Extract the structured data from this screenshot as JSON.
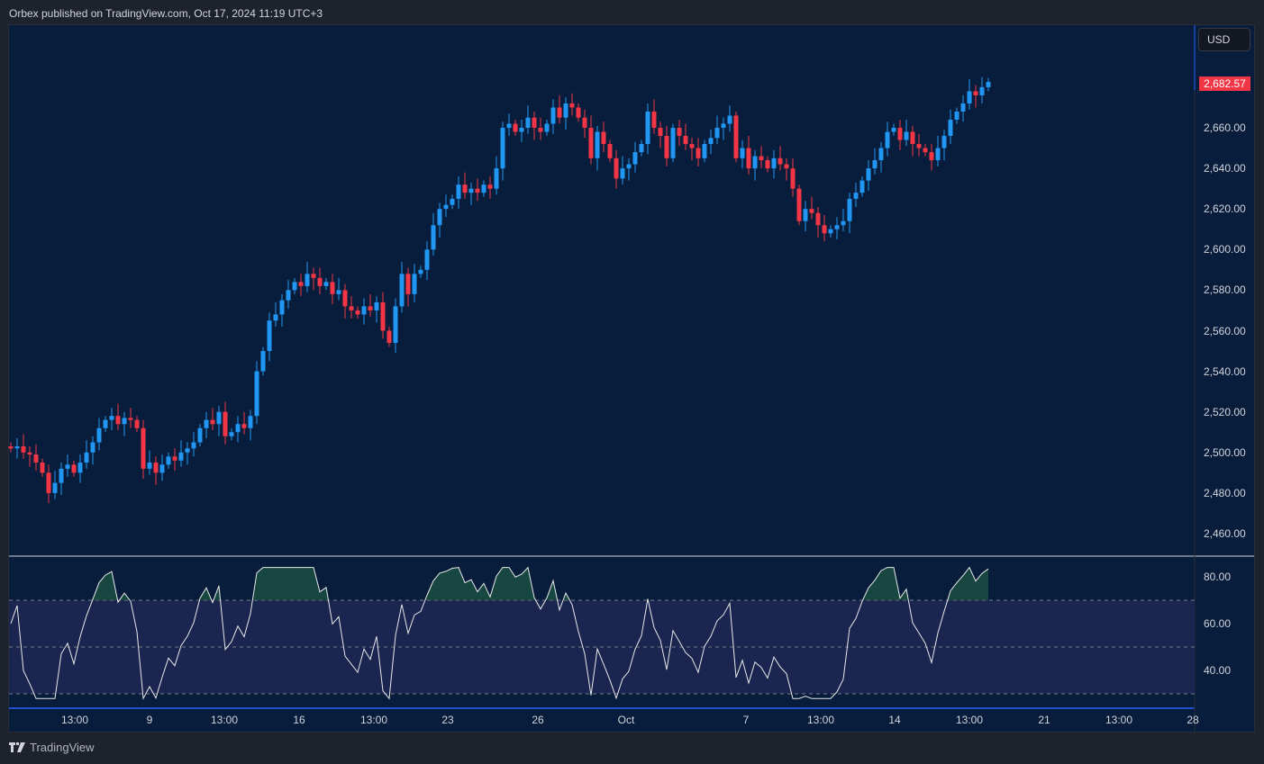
{
  "header": {
    "published": "Orbex published on TradingView.com, Oct 17, 2024 11:19 UTC+3"
  },
  "currency": "USD",
  "last_price": "2,682.57",
  "price_axis": [
    "2,660.00",
    "2,640.00",
    "2,620.00",
    "2,600.00",
    "2,580.00",
    "2,560.00",
    "2,540.00",
    "2,520.00",
    "2,500.00",
    "2,480.00",
    "2,460.00"
  ],
  "rsi_axis": [
    "80.00",
    "60.00",
    "40.00"
  ],
  "time_axis": [
    "13:00",
    "9",
    "13:00",
    "16",
    "13:00",
    "23",
    "26",
    "Oct",
    "7",
    "13:00",
    "14",
    "13:00",
    "21",
    "13:00",
    "28"
  ],
  "footer": {
    "brand": "TradingView"
  },
  "colors": {
    "up": "#2196f3",
    "down": "#f23645",
    "bg": "#081d3b",
    "rsi_band": "#1a2550"
  },
  "chart_data": {
    "type": "candlestick",
    "symbol_price_range": [
      2460,
      2690
    ],
    "closes": [
      2502,
      2503,
      2500,
      2499,
      2495,
      2490,
      2480,
      2485,
      2492,
      2494,
      2490,
      2495,
      2500,
      2505,
      2512,
      2516,
      2518,
      2514,
      2517,
      2516,
      2512,
      2492,
      2495,
      2490,
      2494,
      2498,
      2496,
      2500,
      2502,
      2505,
      2512,
      2516,
      2514,
      2520,
      2508,
      2510,
      2514,
      2512,
      2518,
      2540,
      2550,
      2565,
      2568,
      2575,
      2580,
      2584,
      2582,
      2588,
      2586,
      2582,
      2584,
      2578,
      2580,
      2572,
      2570,
      2568,
      2572,
      2570,
      2574,
      2560,
      2554,
      2572,
      2588,
      2578,
      2588,
      2590,
      2600,
      2612,
      2620,
      2622,
      2625,
      2632,
      2628,
      2630,
      2628,
      2632,
      2630,
      2640,
      2660,
      2662,
      2658,
      2660,
      2665,
      2660,
      2658,
      2662,
      2670,
      2665,
      2672,
      2670,
      2665,
      2660,
      2645,
      2658,
      2652,
      2645,
      2635,
      2640,
      2642,
      2648,
      2652,
      2668,
      2660,
      2656,
      2645,
      2660,
      2656,
      2652,
      2650,
      2645,
      2652,
      2655,
      2660,
      2662,
      2666,
      2645,
      2650,
      2640,
      2646,
      2644,
      2640,
      2645,
      2642,
      2640,
      2630,
      2614,
      2620,
      2618,
      2612,
      2608,
      2610,
      2612,
      2614,
      2625,
      2628,
      2634,
      2640,
      2644,
      2650,
      2658,
      2660,
      2654,
      2658,
      2652,
      2650,
      2648,
      2644,
      2650,
      2656,
      2664,
      2668,
      2672,
      2678,
      2676,
      2680,
      2682.57
    ],
    "indicator": {
      "name": "RSI",
      "levels": [
        70,
        50,
        30
      ],
      "range": [
        25,
        85
      ]
    }
  }
}
